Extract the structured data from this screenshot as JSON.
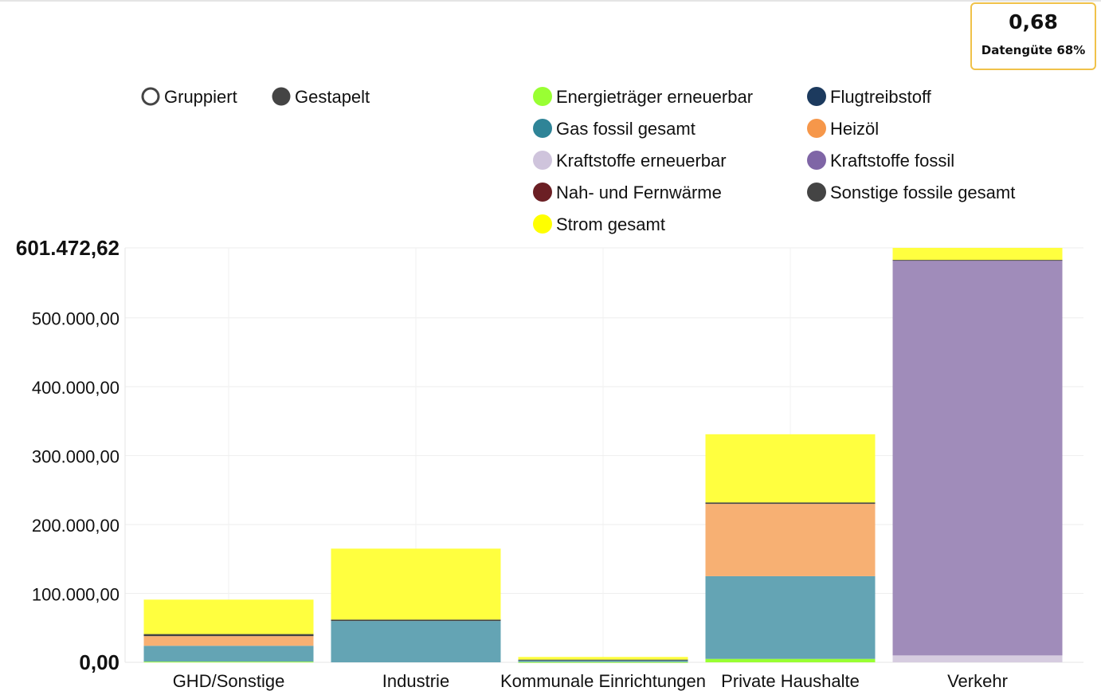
{
  "quality": {
    "value": "0,68",
    "label": "Datengüte 68%"
  },
  "mode_toggle": [
    {
      "label": "Gruppiert",
      "selected": false
    },
    {
      "label": "Gestapelt",
      "selected": true
    }
  ],
  "chart_data": {
    "type": "bar",
    "stacked": true,
    "categories": [
      "GHD/Sonstige",
      "Industrie",
      "Kommunale Einrichtungen",
      "Private Haushalte",
      "Verkehr"
    ],
    "y_axis": {
      "ylim": [
        0,
        601472.62
      ],
      "ticks": [
        "0,00",
        "100.000,00",
        "200.000,00",
        "300.000,00",
        "400.000,00",
        "500.000,00",
        "601.472,62"
      ],
      "tick_values": [
        0,
        100000,
        200000,
        300000,
        400000,
        500000,
        601472.62
      ]
    },
    "grid": true,
    "legend_position": "top-right",
    "series": [
      {
        "name": "Energieträger erneuerbar",
        "color": "#99ff33",
        "values": [
          1000,
          0,
          400,
          5000,
          0
        ]
      },
      {
        "name": "Flugtreibstoff",
        "color": "#1c3a5e",
        "values": [
          0,
          0,
          0,
          0,
          0
        ]
      },
      {
        "name": "Gas fossil gesamt",
        "color": "#64a4b4",
        "values": [
          23000,
          60000,
          3000,
          120000,
          0
        ]
      },
      {
        "name": "Heizöl",
        "color": "#f7b073",
        "values": [
          14000,
          0,
          0,
          105000,
          0
        ]
      },
      {
        "name": "Kraftstoffe erneuerbar",
        "color": "#d6cce0",
        "values": [
          0,
          0,
          0,
          0,
          10000
        ]
      },
      {
        "name": "Kraftstoffe fossil",
        "color": "#a08cba",
        "values": [
          0,
          0,
          0,
          0,
          573000
        ]
      },
      {
        "name": "Nah- und Fernwärme",
        "color": "#6b1f24",
        "values": [
          0,
          0,
          0,
          0,
          0
        ]
      },
      {
        "name": "Sonstige fossile gesamt",
        "color": "#444444",
        "values": [
          3000,
          2000,
          500,
          2000,
          1000
        ]
      },
      {
        "name": "Strom gesamt",
        "color": "#ffff3f",
        "values": [
          50000,
          103000,
          3900,
          99000,
          17472.62
        ]
      }
    ],
    "legend": [
      {
        "name": "Energieträger erneuerbar",
        "color": "#99ff33"
      },
      {
        "name": "Flugtreibstoff",
        "color": "#1c3a5e"
      },
      {
        "name": "Gas fossil gesamt",
        "color": "#2f8497"
      },
      {
        "name": "Heizöl",
        "color": "#f6974a"
      },
      {
        "name": "Kraftstoffe erneuerbar",
        "color": "#cfc4dc"
      },
      {
        "name": "Kraftstoffe fossil",
        "color": "#7f65a6"
      },
      {
        "name": "Nah- und Fernwärme",
        "color": "#6b1f24"
      },
      {
        "name": "Sonstige fossile gesamt",
        "color": "#444444"
      },
      {
        "name": "Strom gesamt",
        "color": "#ffff00"
      }
    ]
  }
}
